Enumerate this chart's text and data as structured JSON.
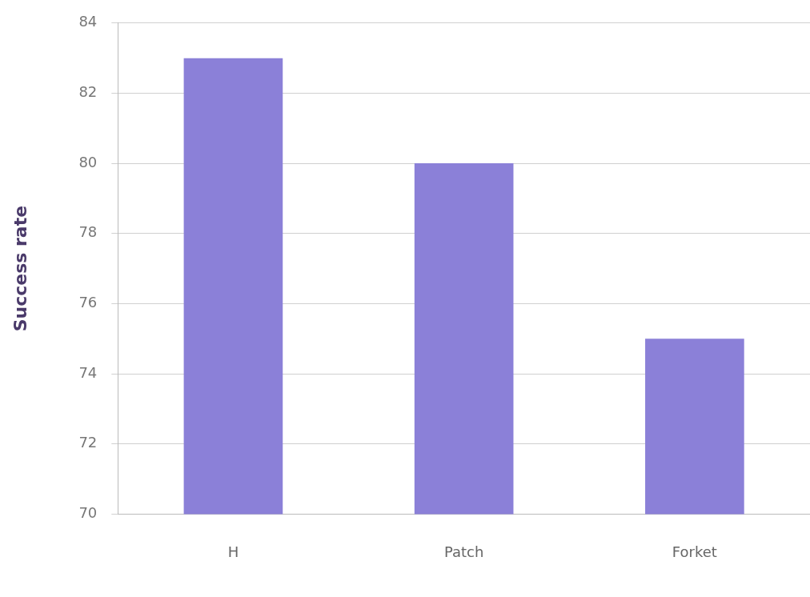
{
  "chart_data": {
    "type": "bar",
    "ylabel": "Success rate",
    "categories": [
      "H",
      "Patch",
      "Forket"
    ],
    "values": [
      83,
      80,
      75
    ],
    "color": "#8b80d8",
    "ylim": [
      70,
      84
    ],
    "yticks": [
      70,
      72,
      74,
      76,
      78,
      80,
      82,
      84
    ],
    "grid": "y"
  }
}
